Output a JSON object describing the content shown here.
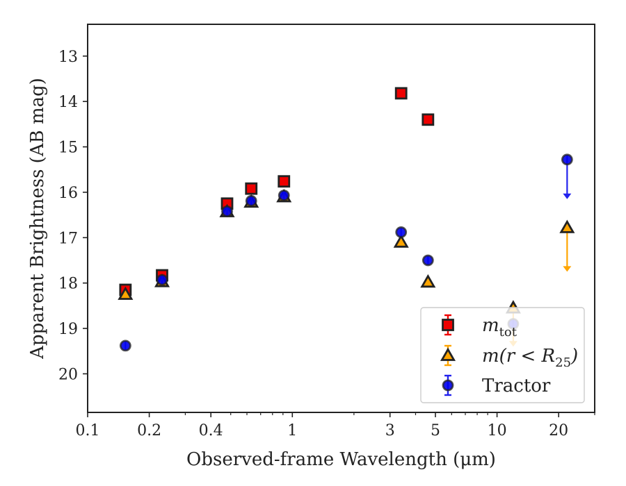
{
  "chart_data": {
    "type": "scatter",
    "title": "",
    "xlabel": "Observed-frame Wavelength (μm)",
    "ylabel": "Apparent Brightness (AB mag)",
    "xscale": "log",
    "xlim": [
      0.1,
      30
    ],
    "ylim": [
      20.85,
      12.3
    ],
    "y_inverted": true,
    "x_ticks": [
      {
        "value": 0.1,
        "label": "0.1"
      },
      {
        "value": 0.2,
        "label": "0.2"
      },
      {
        "value": 0.4,
        "label": "0.4"
      },
      {
        "value": 1,
        "label": "1"
      },
      {
        "value": 3,
        "label": "3"
      },
      {
        "value": 5,
        "label": "5"
      },
      {
        "value": 10,
        "label": "10"
      },
      {
        "value": 20,
        "label": "20"
      }
    ],
    "x_minor_ticks": [
      0.3,
      0.5,
      0.6,
      0.7,
      0.8,
      0.9,
      2,
      4,
      6,
      7,
      8,
      9,
      30
    ],
    "y_ticks": [
      {
        "value": 13,
        "label": "13"
      },
      {
        "value": 14,
        "label": "14"
      },
      {
        "value": 15,
        "label": "15"
      },
      {
        "value": 16,
        "label": "16"
      },
      {
        "value": 17,
        "label": "17"
      },
      {
        "value": 18,
        "label": "18"
      },
      {
        "value": 19,
        "label": "19"
      },
      {
        "value": 20,
        "label": "20"
      }
    ],
    "grid": false,
    "legend_position": "lower-right",
    "series": [
      {
        "name": "m_tot",
        "legend_main": "m",
        "legend_sub": "tot",
        "marker": "square",
        "color": "#ee0000",
        "errcolor": "#ee0000",
        "points": [
          {
            "x": 0.153,
            "y": 18.15
          },
          {
            "x": 0.231,
            "y": 17.83
          },
          {
            "x": 0.48,
            "y": 16.25
          },
          {
            "x": 0.63,
            "y": 15.92
          },
          {
            "x": 0.91,
            "y": 15.76
          },
          {
            "x": 3.4,
            "y": 13.82
          },
          {
            "x": 4.6,
            "y": 14.4
          }
        ]
      },
      {
        "name": "m(r<R_25)",
        "legend_main": "m(r < R",
        "legend_sub": "25",
        "legend_tail": ")",
        "marker": "triangle",
        "color": "#ffa500",
        "errcolor": "#ffa500",
        "points": [
          {
            "x": 0.153,
            "y": 18.25
          },
          {
            "x": 0.231,
            "y": 17.97
          },
          {
            "x": 0.48,
            "y": 16.43
          },
          {
            "x": 0.63,
            "y": 16.22
          },
          {
            "x": 0.91,
            "y": 16.1
          },
          {
            "x": 3.4,
            "y": 17.1
          },
          {
            "x": 4.6,
            "y": 17.98
          },
          {
            "x": 12,
            "y": 18.55,
            "upper_limit": true,
            "limit_to": 19.4
          },
          {
            "x": 22,
            "y": 16.78,
            "upper_limit": true,
            "limit_to": 17.75
          }
        ]
      },
      {
        "name": "Tractor",
        "legend_main": "Tractor",
        "marker": "circle",
        "color": "#0000ee",
        "errcolor": "#2222ee",
        "points": [
          {
            "x": 0.153,
            "y": 19.38
          },
          {
            "x": 0.231,
            "y": 17.93
          },
          {
            "x": 0.48,
            "y": 16.42
          },
          {
            "x": 0.63,
            "y": 16.19
          },
          {
            "x": 0.91,
            "y": 16.07
          },
          {
            "x": 3.4,
            "y": 16.88
          },
          {
            "x": 4.6,
            "y": 17.5
          },
          {
            "x": 12,
            "y": 18.9
          },
          {
            "x": 22,
            "y": 15.28,
            "upper_limit": true,
            "limit_to": 16.15
          }
        ]
      }
    ]
  }
}
